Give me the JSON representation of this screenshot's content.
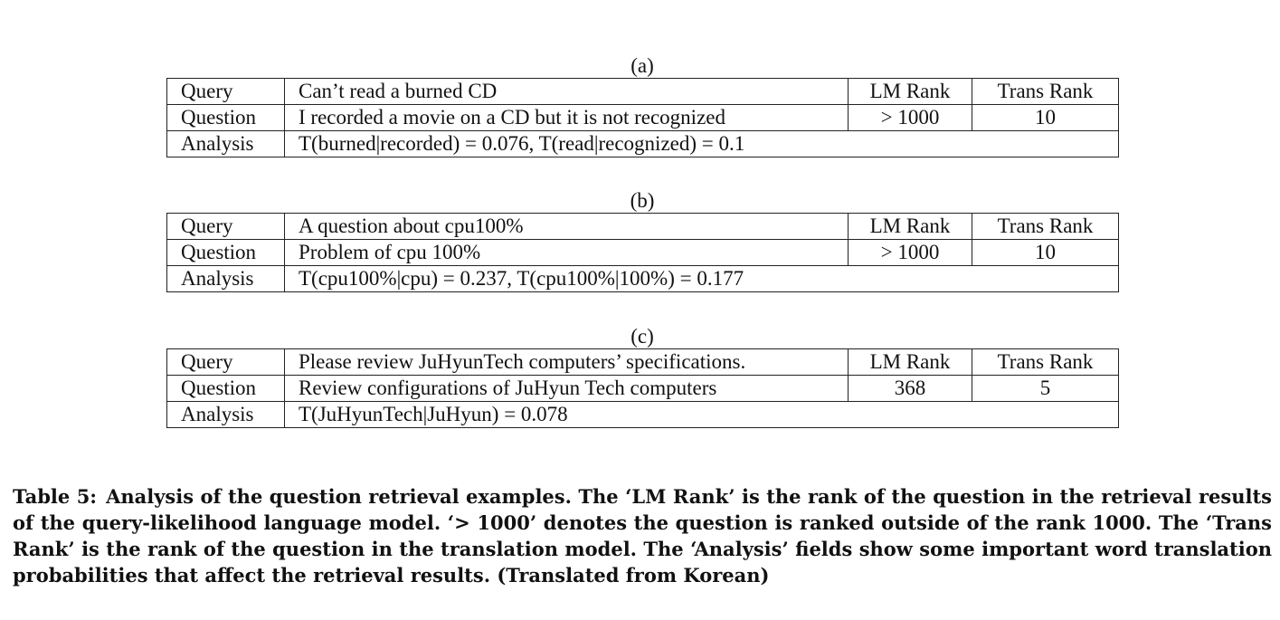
{
  "tables": [
    {
      "label": "(a)",
      "query_label": "Query",
      "query_text": "Can’t read a burned CD",
      "lm_rank_header": "LM Rank",
      "trans_rank_header": "Trans Rank",
      "question_label": "Question",
      "question_text": "I recorded a movie on a CD but it is not recognized",
      "lm_rank_value": "> 1000",
      "trans_rank_value": "10",
      "analysis_label": "Analysis",
      "analysis_text": "T(burned|recorded) = 0.076, T(read|recognized) = 0.1"
    },
    {
      "label": "(b)",
      "query_label": "Query",
      "query_text": "A question about cpu100%",
      "lm_rank_header": "LM Rank",
      "trans_rank_header": "Trans Rank",
      "question_label": "Question",
      "question_text": "Problem of cpu 100%",
      "lm_rank_value": "> 1000",
      "trans_rank_value": "10",
      "analysis_label": "Analysis",
      "analysis_text": "T(cpu100%|cpu) = 0.237, T(cpu100%|100%) = 0.177"
    },
    {
      "label": "(c)",
      "query_label": "Query",
      "query_text": "Please review JuHyunTech computers’ specifications.",
      "lm_rank_header": "LM Rank",
      "trans_rank_header": "Trans Rank",
      "question_label": "Question",
      "question_text": "Review configurations of JuHyun Tech computers",
      "lm_rank_value": "368",
      "trans_rank_value": "5",
      "analysis_label": "Analysis",
      "analysis_text": "T(JuHyunTech|JuHyun) = 0.078"
    }
  ],
  "caption": {
    "label": "Table 5:",
    "text": "Analysis of the question retrieval examples.  The ‘LM Rank’ is the rank of the question in the retrieval results of the query-likelihood language model.  ‘> 1000’ denotes the question is ranked outside of the rank 1000.  The ‘Trans Rank’ is the rank of the question in the translation model.  The ‘Analysis’ fields show some important word translation probabilities that affect the retrieval results.  (Translated from Korean)"
  }
}
